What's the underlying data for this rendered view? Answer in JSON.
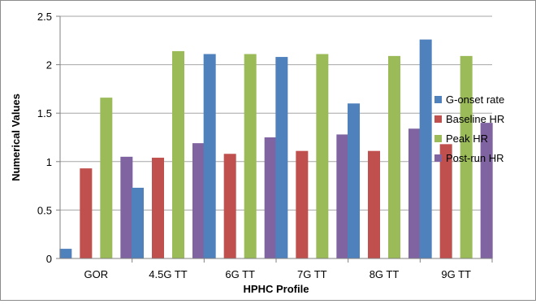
{
  "chart_data": {
    "type": "bar",
    "title": "",
    "xlabel": "HPHC Profile",
    "ylabel": "Numerical Values",
    "ylim": [
      0,
      2.5
    ],
    "yticks": [
      "0",
      "0.5",
      "1",
      "1.5",
      "2",
      "2.5"
    ],
    "grid": "horizontal",
    "legend_position": "right",
    "categories": [
      "GOR",
      "4.5G TT",
      "6G TT",
      "7G TT",
      "8G TT",
      "9G TT"
    ],
    "series": [
      {
        "name": "G-onset rate",
        "color": "#4f81bd",
        "values": [
          0.1,
          0.73,
          2.11,
          2.08,
          1.6,
          2.26
        ]
      },
      {
        "name": "Baseline HR",
        "color": "#c0504d",
        "values": [
          0.93,
          1.04,
          1.08,
          1.11,
          1.11,
          1.18
        ]
      },
      {
        "name": "Peak HR",
        "color": "#9bbb59",
        "values": [
          1.66,
          2.14,
          2.11,
          2.11,
          2.09,
          2.09
        ]
      },
      {
        "name": "Post-run HR",
        "color": "#8064a2",
        "values": [
          1.05,
          1.19,
          1.25,
          1.28,
          1.34,
          1.4
        ]
      }
    ]
  }
}
